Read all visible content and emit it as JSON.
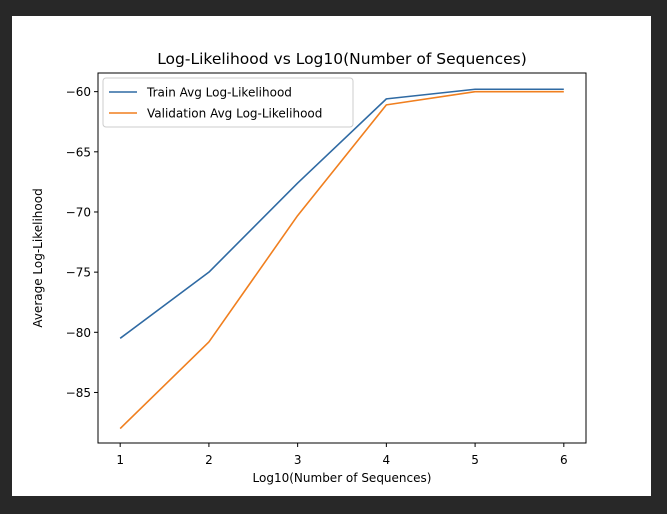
{
  "chart_data": {
    "type": "line",
    "title": "Log-Likelihood vs Log10(Number of Sequences)",
    "xlabel": "Log10(Number of Sequences)",
    "ylabel": "Average Log-Likelihood",
    "x": [
      1,
      2,
      3,
      4,
      5,
      6
    ],
    "xticks": [
      "1",
      "2",
      "3",
      "4",
      "5",
      "6"
    ],
    "yticks": [
      "−60",
      "−65",
      "−70",
      "−75",
      "−80",
      "−85"
    ],
    "xlim": [
      0.75,
      6.25
    ],
    "ylim": [
      -89.2,
      -58.45
    ],
    "grid": false,
    "legend_position": "upper-left",
    "series": [
      {
        "name": "Train Avg Log-Likelihood",
        "color": "#2f6aa3",
        "values": [
          -80.5,
          -75.0,
          -67.6,
          -60.6,
          -59.8,
          -59.8
        ]
      },
      {
        "name": "Validation Avg Log-Likelihood",
        "color": "#f07f1f",
        "values": [
          -88.0,
          -80.8,
          -70.3,
          -61.1,
          -60.0,
          -60.0
        ]
      }
    ]
  }
}
